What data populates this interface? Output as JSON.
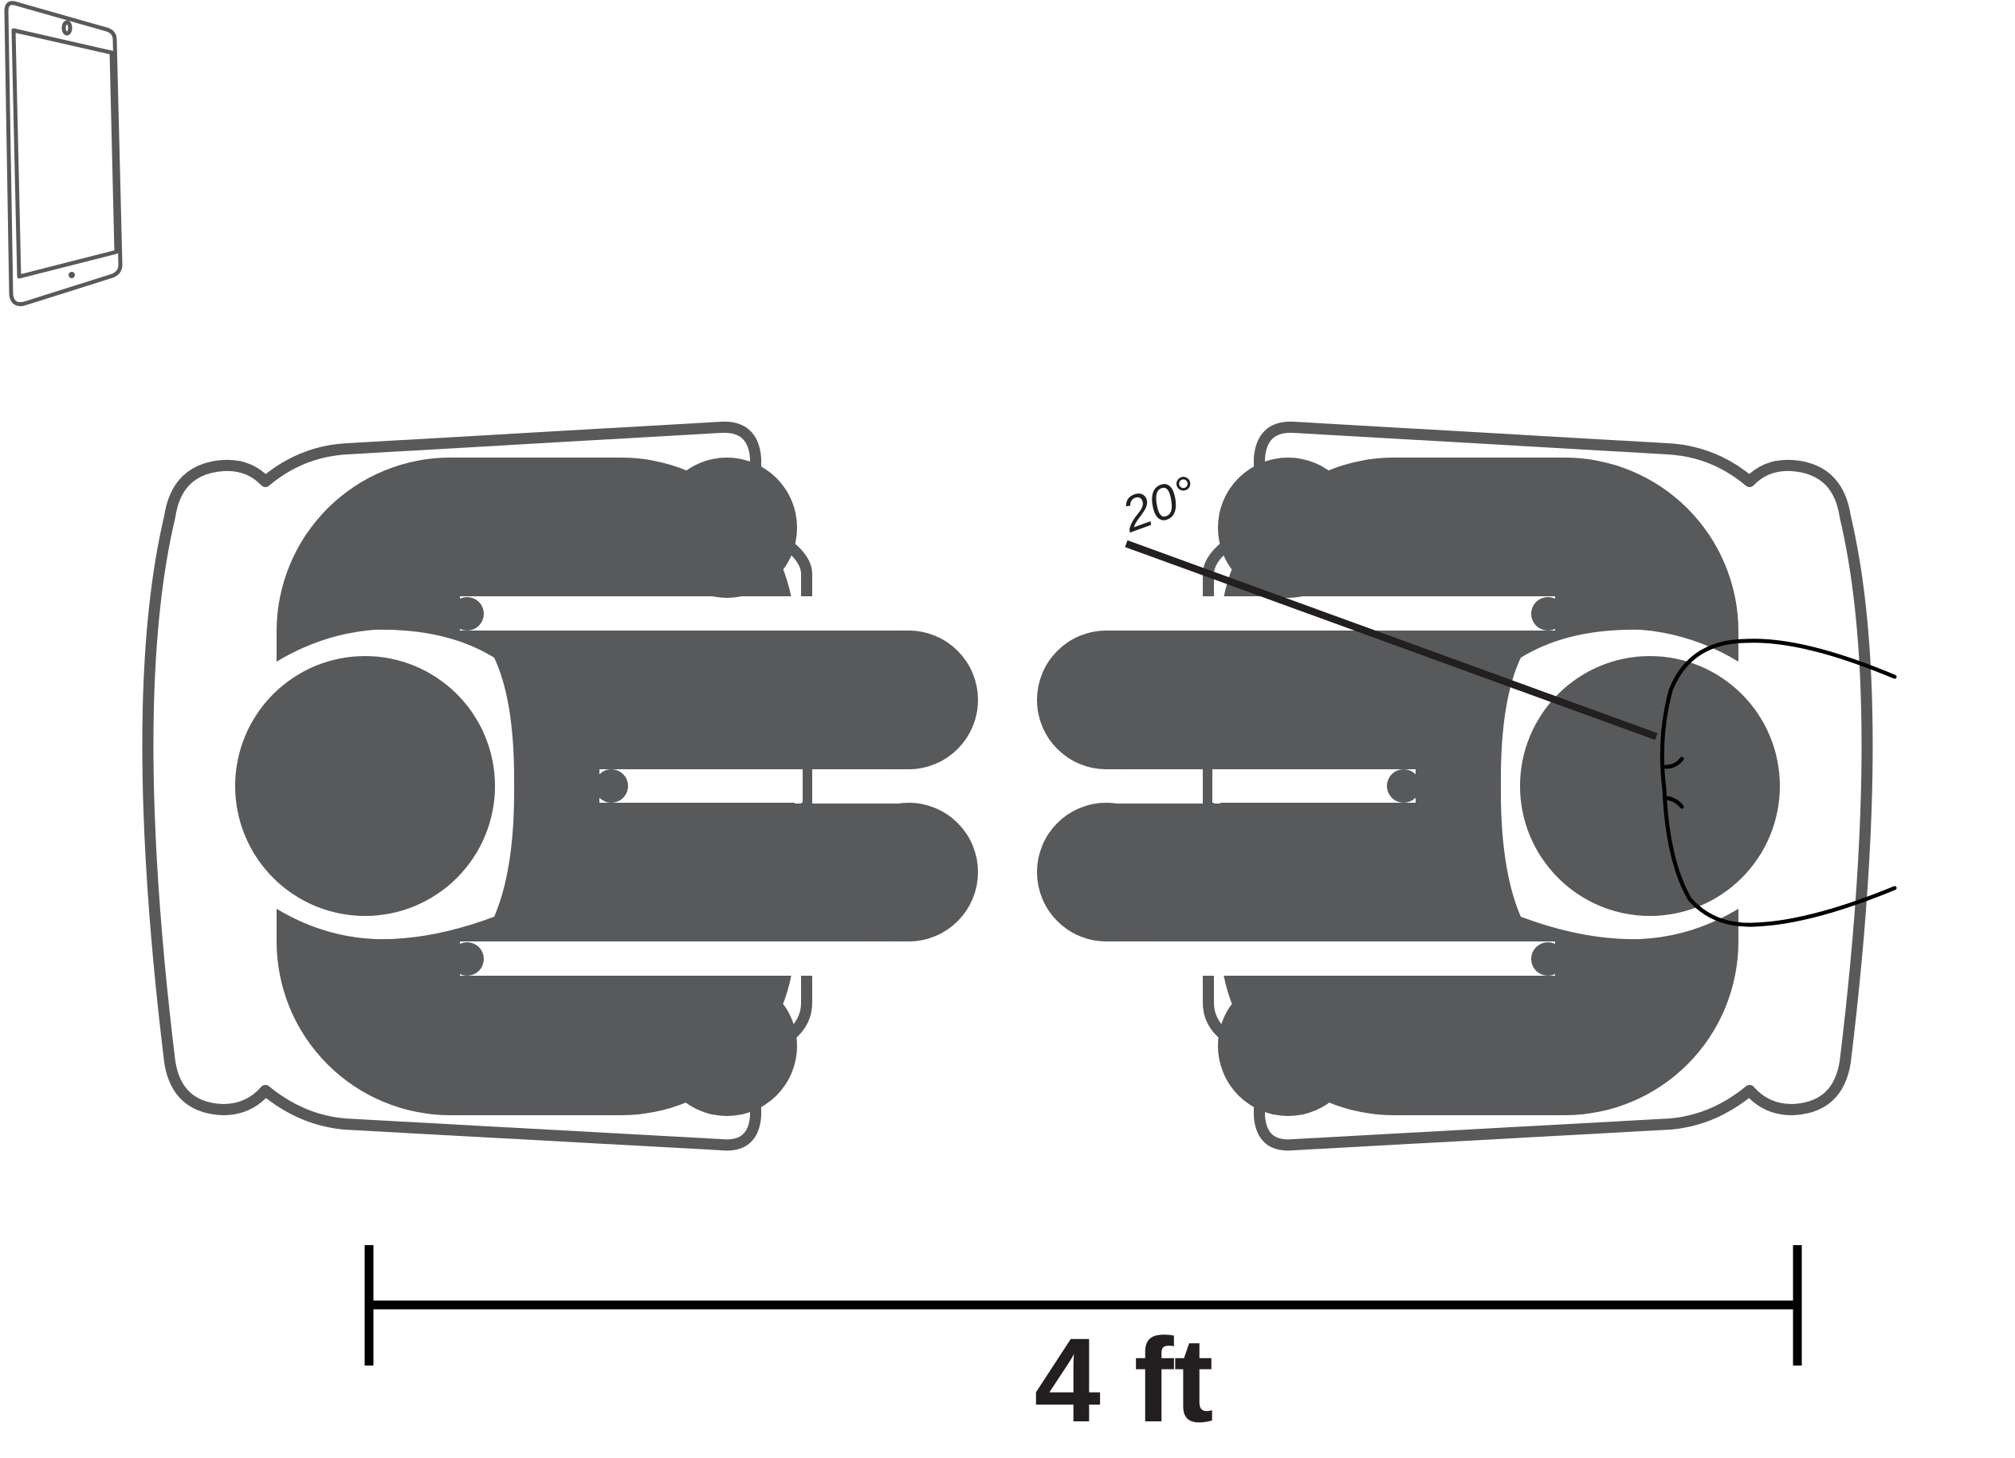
{
  "angle_label": "20°",
  "distance_label": "4 ft",
  "icons": {
    "tablet": "tablet-icon",
    "left_person": "seated-person-icon",
    "right_person": "seated-person-turned-icon"
  },
  "colors": {
    "figure": "#58595b",
    "line": "#231f20",
    "background": "#ffffff"
  }
}
